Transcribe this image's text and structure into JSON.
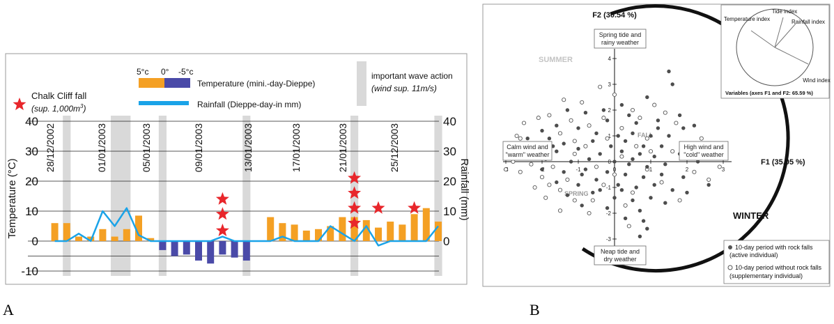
{
  "panel_labels": {
    "a": "A",
    "b": "B"
  },
  "colors": {
    "orange": "#f4a024",
    "blue": "#4a4aa8",
    "rain": "#1aa3e8",
    "star": "#e8262b",
    "grey": "#d9d9d9"
  },
  "chart_data": [
    {
      "type": "bar",
      "legend": {
        "cliff_fall": "Chalk Cliff  fall",
        "cliff_fall_sub": "(sup. 1,000m",
        "cliff_fall_sup": "3",
        "cliff_fall_close": ")",
        "temp_scale": [
          "5°c",
          "0°",
          "-5°c"
        ],
        "temperature": "Temperature (mini.-day-Dieppe)",
        "rainfall": "Rainfall (Dieppe-day-in mm)",
        "wave": "important wave action",
        "wave_sub": "(wind sup. 11m/s)"
      },
      "ylabel_left": "Temperature (°C)",
      "ylabel_right": "Rainfall (mm)",
      "yticks_left": [
        "40",
        "30",
        "20",
        "10",
        "0",
        "-10"
      ],
      "yticks_right": [
        "40",
        "30",
        "20",
        "10",
        "0"
      ],
      "ylim": [
        -10,
        40
      ],
      "dates": [
        "28/12/2002",
        "01/01/2003",
        "05/01/2003",
        "09/01/2003",
        "13/01/2003",
        "17/01/2003",
        "21/01/2003",
        "25/12/2003"
      ],
      "temperature": [
        6,
        6,
        1.5,
        1.5,
        4,
        1.5,
        4,
        8.5,
        1,
        -3,
        -5,
        -4.5,
        -6.5,
        -7.5,
        -4.5,
        -5.5,
        -6.5,
        0,
        8,
        6,
        5.5,
        3.5,
        4,
        5,
        8,
        8,
        7,
        4.5,
        6.5,
        5.5,
        9,
        11,
        6.5
      ],
      "rainfall": [
        0,
        0,
        2.5,
        0,
        10,
        5,
        11,
        2,
        0,
        0,
        0,
        0,
        0,
        0,
        1.5,
        0,
        0,
        0,
        0,
        1.5,
        0,
        0,
        0,
        5,
        2.5,
        0,
        5,
        -1.5,
        0,
        0,
        0,
        0,
        5
      ],
      "wave_periods": [
        [
          2,
          2
        ],
        [
          6,
          7
        ],
        [
          10,
          10
        ],
        [
          17,
          17
        ],
        [
          26,
          26
        ],
        [
          33,
          33
        ]
      ],
      "cliff_falls": [
        {
          "day": 15,
          "y": [
            3.5,
            9,
            14
          ]
        },
        {
          "day": 26,
          "y": [
            6,
            11,
            16,
            21
          ]
        },
        {
          "day": 28,
          "y": [
            11
          ]
        },
        {
          "day": 31,
          "y": [
            11
          ]
        }
      ]
    },
    {
      "type": "scatter",
      "x_axis": "F1 (35.05 %)",
      "y_axis": "F2 (30.54 %)",
      "xlim": [
        -3,
        3
      ],
      "ylim": [
        -3,
        4
      ],
      "xticks": [
        "-3",
        "-2",
        "-1",
        "0",
        "1",
        "2",
        "3"
      ],
      "yticks": [
        "-3",
        "-2",
        "-1",
        "0",
        "1",
        "2",
        "3",
        "4"
      ],
      "boxes": {
        "top": [
          "Spring tide and",
          "rainy weather"
        ],
        "bottom": [
          "Neap tide and",
          "dry weather"
        ],
        "left": [
          "Calm wind and",
          "\"warm\" weather"
        ],
        "right": [
          "High wind and",
          "\"cold\" weather"
        ]
      },
      "seasons": {
        "summer": "SUMMER",
        "winter": "WINTER",
        "fall": "FALL",
        "spring": "SPRING"
      },
      "inset": {
        "labels": [
          "Temperature index",
          "Tide index",
          "Rainfall index",
          "Wind index"
        ],
        "caption": "Variables (axes F1 and F2: 65.59 %)"
      },
      "legend": [
        "10-day period with rock falls",
        "(active individual)",
        "10-day period without rock falls",
        "(supplementary individual)"
      ],
      "series": [
        {
          "name": "10-day period with rock falls",
          "points": [
            [
              1.5,
              3.5
            ],
            [
              1.6,
              3.0
            ],
            [
              -0.3,
              2.0
            ],
            [
              0.2,
              2.2
            ],
            [
              0.9,
              2.5
            ],
            [
              -1.3,
              2.0
            ],
            [
              -0.8,
              1.9
            ],
            [
              0.4,
              1.8
            ],
            [
              1.8,
              1.8
            ],
            [
              -0.2,
              1.6
            ],
            [
              0.6,
              1.5
            ],
            [
              1.2,
              1.6
            ],
            [
              1.9,
              1.3
            ],
            [
              2.2,
              1.4
            ],
            [
              -1.6,
              1.4
            ],
            [
              -2.0,
              1.2
            ],
            [
              -1.0,
              1.3
            ],
            [
              -0.5,
              1.1
            ],
            [
              0.1,
              1.0
            ],
            [
              0.5,
              1.1
            ],
            [
              1.0,
              1.0
            ],
            [
              1.5,
              1.0
            ],
            [
              -2.4,
              0.9
            ],
            [
              -1.8,
              0.9
            ],
            [
              -1.4,
              0.7
            ],
            [
              -0.6,
              0.8
            ],
            [
              0.3,
              0.8
            ],
            [
              0.8,
              0.6
            ],
            [
              1.3,
              0.6
            ],
            [
              2.0,
              0.7
            ],
            [
              -2.2,
              0.5
            ],
            [
              -1.6,
              0.4
            ],
            [
              -1.0,
              0.5
            ],
            [
              -0.4,
              0.3
            ],
            [
              0.2,
              0.4
            ],
            [
              0.7,
              0.3
            ],
            [
              1.1,
              0.2
            ],
            [
              1.8,
              0.3
            ],
            [
              -1.9,
              0.1
            ],
            [
              -1.2,
              0.0
            ],
            [
              -0.7,
              0.1
            ],
            [
              0.0,
              0.0
            ],
            [
              0.4,
              -0.1
            ],
            [
              0.9,
              -0.2
            ],
            [
              1.4,
              -0.1
            ],
            [
              2.3,
              0.0
            ],
            [
              -2.0,
              -0.3
            ],
            [
              -1.4,
              -0.4
            ],
            [
              -0.8,
              -0.3
            ],
            [
              -0.2,
              -0.4
            ],
            [
              0.3,
              -0.5
            ],
            [
              0.8,
              -0.6
            ],
            [
              1.3,
              -0.5
            ],
            [
              1.9,
              -0.6
            ],
            [
              -1.6,
              -0.8
            ],
            [
              -1.0,
              -0.9
            ],
            [
              -0.5,
              -0.7
            ],
            [
              0.1,
              -0.9
            ],
            [
              0.6,
              -1.0
            ],
            [
              1.1,
              -0.9
            ],
            [
              1.6,
              -1.1
            ],
            [
              -1.3,
              -1.3
            ],
            [
              -0.6,
              -1.2
            ],
            [
              0.0,
              -1.4
            ],
            [
              0.5,
              -1.5
            ],
            [
              1.0,
              -1.4
            ],
            [
              1.4,
              -1.6
            ],
            [
              2.0,
              -1.2
            ],
            [
              -0.9,
              -1.7
            ],
            [
              -0.2,
              -1.8
            ],
            [
              0.7,
              -1.9
            ],
            [
              0.3,
              -2.2
            ],
            [
              0.8,
              -2.3
            ],
            [
              0.9,
              -2.6
            ],
            [
              0.7,
              -2.9
            ],
            [
              -0.4,
              -1.1
            ],
            [
              -1.7,
              0.6
            ],
            [
              2.6,
              -0.9
            ],
            [
              1.2,
              1.3
            ],
            [
              -0.1,
              0.6
            ],
            [
              0.5,
              0.1
            ],
            [
              -0.9,
              -0.5
            ],
            [
              0.2,
              -1.1
            ]
          ]
        },
        {
          "name": "10-day period without rock falls",
          "points": [
            [
              -0.4,
              2.9
            ],
            [
              0.0,
              2.6
            ],
            [
              -0.9,
              2.3
            ],
            [
              -1.8,
              1.8
            ],
            [
              0.5,
              2.0
            ],
            [
              -2.5,
              1.5
            ],
            [
              -2.1,
              1.7
            ],
            [
              -1.2,
              1.6
            ],
            [
              0.7,
              1.7
            ],
            [
              1.4,
              1.9
            ],
            [
              -2.7,
              1.0
            ],
            [
              -1.5,
              1.1
            ],
            [
              -0.7,
              1.4
            ],
            [
              0.2,
              1.3
            ],
            [
              1.7,
              1.5
            ],
            [
              -2.9,
              0.6
            ],
            [
              -2.5,
              0.3
            ],
            [
              -1.1,
              0.8
            ],
            [
              -0.2,
              0.9
            ],
            [
              0.9,
              0.9
            ],
            [
              -2.8,
              0.0
            ],
            [
              -2.3,
              -0.1
            ],
            [
              -1.7,
              -0.2
            ],
            [
              -1.1,
              0.3
            ],
            [
              0.6,
              0.6
            ],
            [
              1.6,
              0.4
            ],
            [
              -2.6,
              -0.4
            ],
            [
              -2.0,
              -0.6
            ],
            [
              -1.3,
              -0.7
            ],
            [
              -0.5,
              -0.2
            ],
            [
              0.9,
              -0.3
            ],
            [
              2.2,
              -0.4
            ],
            [
              -2.2,
              -1.0
            ],
            [
              -1.5,
              -1.1
            ],
            [
              -0.3,
              -0.9
            ],
            [
              1.3,
              -0.8
            ],
            [
              2.6,
              -0.7
            ],
            [
              -1.9,
              -1.4
            ],
            [
              -1.1,
              -1.5
            ],
            [
              0.3,
              -1.7
            ],
            [
              1.8,
              -1.5
            ],
            [
              -1.5,
              -1.9
            ],
            [
              -0.7,
              -2.0
            ],
            [
              0.4,
              -2.5
            ],
            [
              -3.0,
              -0.3
            ],
            [
              -2.6,
              0.9
            ],
            [
              2.9,
              -0.2
            ],
            [
              1.0,
              0.4
            ],
            [
              -0.8,
              0.6
            ],
            [
              0.0,
              -0.5
            ],
            [
              -1.8,
              -0.9
            ],
            [
              0.5,
              -1.2
            ],
            [
              -0.3,
              1.7
            ],
            [
              1.1,
              2.2
            ],
            [
              -1.4,
              2.4
            ],
            [
              2.4,
              0.9
            ],
            [
              -0.6,
              -1.5
            ],
            [
              0.2,
              0.2
            ]
          ]
        }
      ]
    }
  ]
}
